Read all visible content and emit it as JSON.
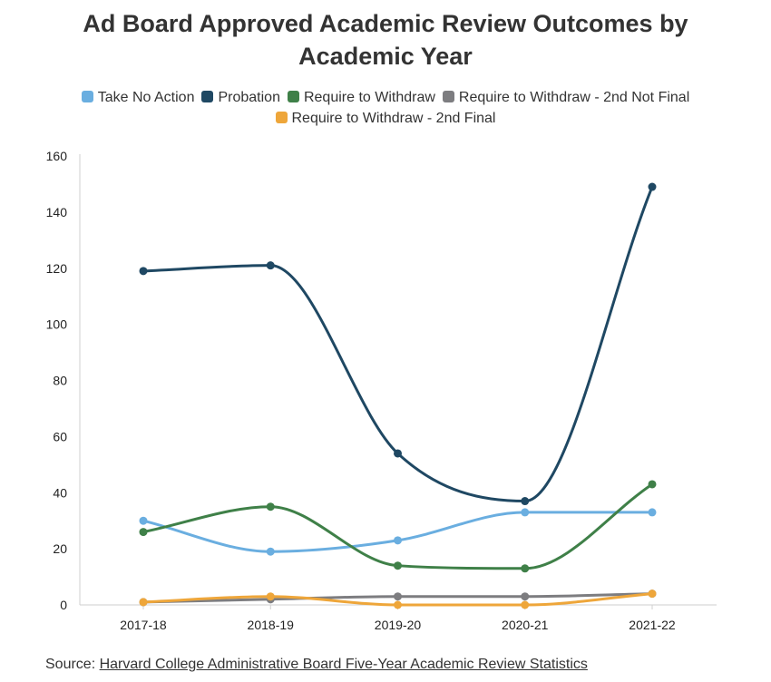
{
  "chart_data": {
    "type": "line",
    "title": "Ad Board Approved Academic Review Outcomes by Academic Year",
    "title_lines": [
      "Ad Board Approved Academic Review Outcomes by",
      "Academic Year"
    ],
    "categories": [
      "2017-18",
      "2018-19",
      "2019-20",
      "2020-21",
      "2021-22"
    ],
    "y_ticks": [
      "0",
      "20",
      "40",
      "60",
      "80",
      "100",
      "120",
      "140",
      "160"
    ],
    "ylim": [
      0,
      160
    ],
    "grid": false,
    "legend_position": "top",
    "series": [
      {
        "name": "Take No Action",
        "color": "#6aaee0",
        "values": [
          30,
          19,
          23,
          33,
          33
        ]
      },
      {
        "name": "Probation",
        "color": "#1f4863",
        "values": [
          119,
          121,
          54,
          37,
          149
        ]
      },
      {
        "name": "Require to Withdraw",
        "color": "#3f8048",
        "values": [
          26,
          35,
          14,
          13,
          43
        ]
      },
      {
        "name": "Require to Withdraw - 2nd Not Final",
        "color": "#7d7d80",
        "values": [
          1,
          2,
          3,
          3,
          4
        ]
      },
      {
        "name": "Require to Withdraw - 2nd Final",
        "color": "#eea63a",
        "values": [
          1,
          3,
          0,
          0,
          4
        ]
      }
    ]
  },
  "source": {
    "prefix": "Source: ",
    "link_text": "Harvard College Administrative Board Five-Year Academic Review Statistics"
  }
}
